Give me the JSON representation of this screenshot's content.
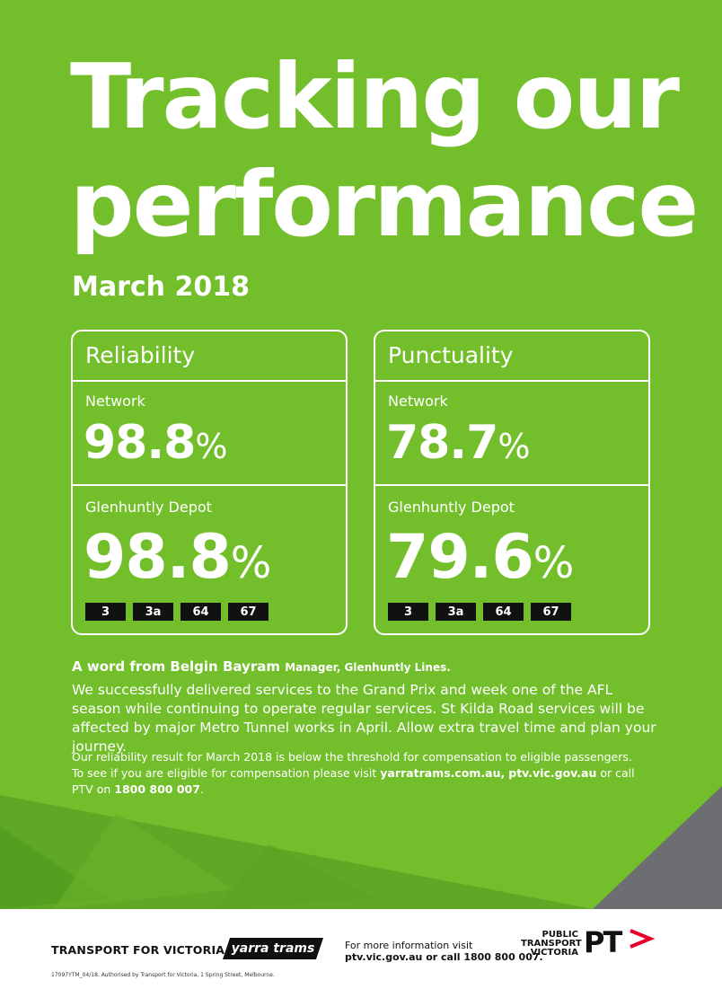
{
  "colors": {
    "accent_green": "#72bf2b",
    "footer_grey": "#6d6e71",
    "pt_orange": "#e4002b"
  },
  "header": {
    "title_line1": "Tracking our",
    "title_line2": "performance",
    "period": "March 2018"
  },
  "reliability": {
    "heading": "Reliability",
    "network_label": "Network",
    "network_value": "98.8",
    "depot_label": "Glenhuntly Depot",
    "depot_value": "98.8",
    "percent_sign": "%",
    "routes": [
      "3",
      "3a",
      "64",
      "67"
    ]
  },
  "punctuality": {
    "heading": "Punctuality",
    "network_label": "Network",
    "network_value": "78.7",
    "depot_label": "Glenhuntly Depot",
    "depot_value": "79.6",
    "percent_sign": "%",
    "routes": [
      "3",
      "3a",
      "64",
      "67"
    ]
  },
  "message": {
    "intro": "A word from Belgin Bayram",
    "role": "Manager, Glenhuntly Lines.",
    "body": "We successfully delivered services to the Grand Prix and week one of the AFL season while continuing to operate regular services. St Kilda Road services will be affected by major Metro Tunnel works in April. Allow extra travel time and plan your journey."
  },
  "compensation": {
    "line1": "Our reliability result for March 2018 is below the threshold for compensation to eligible passengers.",
    "line2_prefix": "To see if you are eligible for compensation please visit",
    "link1": "yarratrams.com.au",
    "separator": ",",
    "link2": "ptv.vic.gov.au",
    "line2_suffix": "or call",
    "line3_prefix": "PTV on",
    "phone": "1800 800 007",
    "period_char": "."
  },
  "footer": {
    "tfv_logo": "TRANSPORT FOR VICTORIA",
    "yarra_logo": "yarra trams",
    "info_line1": "For more information visit",
    "info_line2": "ptv.vic.gov.au or call 1800 800 007.",
    "ptv_line1": "PUBLIC",
    "ptv_line2": "TRANSPORT",
    "ptv_line3": "VICTORIA",
    "pt_mark": "PT",
    "authorised": "17097YTM_04/18. Authorised by Transport for Victoria, 1 Spring Street, Melbourne."
  }
}
